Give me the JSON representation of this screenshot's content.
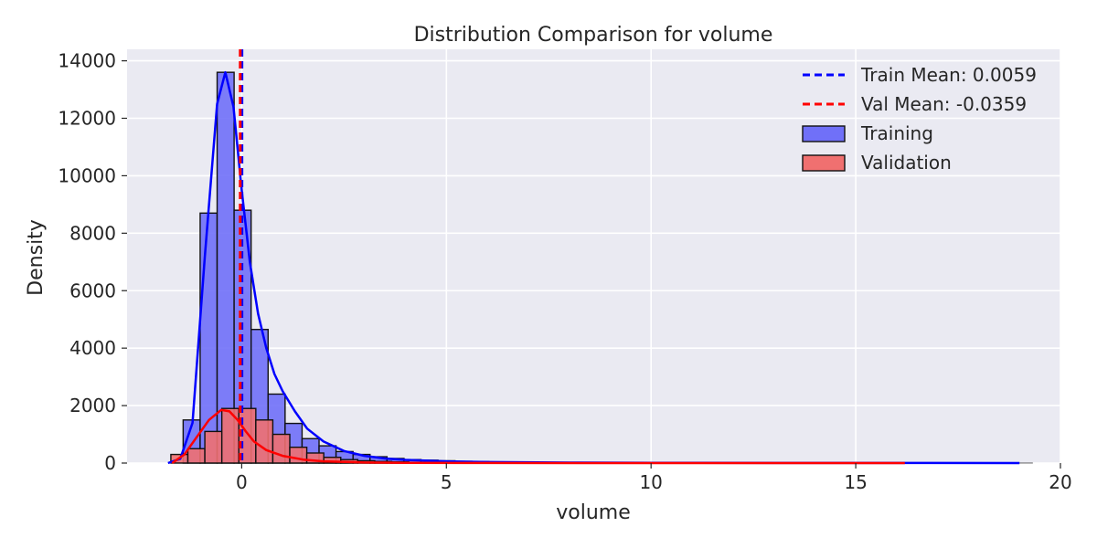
{
  "chart_data": {
    "type": "histogram",
    "title": "Distribution Comparison for volume",
    "xlabel": "volume",
    "ylabel": "Density",
    "xlim": [
      -2.8,
      20
    ],
    "ylim": [
      0,
      14400
    ],
    "xticks": [
      0,
      5,
      10,
      15,
      20
    ],
    "yticks": [
      0,
      2000,
      4000,
      6000,
      8000,
      10000,
      12000,
      14000
    ],
    "grid": true,
    "legend_position": "top-right",
    "bin_width": 0.415,
    "series": [
      {
        "name": "Training",
        "color": "#0000ff",
        "fill": "#7070f8",
        "bins_start": -1.43,
        "counts": [
          1500,
          8700,
          13600,
          8800,
          4650,
          2400,
          1380,
          850,
          600,
          400,
          300,
          220,
          160,
          120,
          100,
          80,
          60,
          50,
          40,
          35,
          30,
          25,
          20,
          15,
          12,
          10,
          8,
          7,
          6,
          5,
          5,
          4,
          4,
          3,
          3,
          3,
          3,
          2,
          2,
          2,
          2,
          2,
          2,
          2,
          2,
          2,
          2,
          2,
          2,
          2
        ],
        "kde": [
          [
            -1.8,
            0
          ],
          [
            -1.5,
            150
          ],
          [
            -1.2,
            1400
          ],
          [
            -0.9,
            7200
          ],
          [
            -0.6,
            12500
          ],
          [
            -0.4,
            13600
          ],
          [
            -0.2,
            12400
          ],
          [
            0.0,
            9500
          ],
          [
            0.2,
            7000
          ],
          [
            0.4,
            5200
          ],
          [
            0.6,
            4000
          ],
          [
            0.8,
            3100
          ],
          [
            1.0,
            2500
          ],
          [
            1.3,
            1800
          ],
          [
            1.6,
            1200
          ],
          [
            2.0,
            750
          ],
          [
            2.5,
            420
          ],
          [
            3.0,
            250
          ],
          [
            3.5,
            160
          ],
          [
            4.0,
            110
          ],
          [
            5.0,
            60
          ],
          [
            6.0,
            35
          ],
          [
            8.0,
            15
          ],
          [
            10.0,
            8
          ],
          [
            13.0,
            4
          ],
          [
            16.0,
            2
          ],
          [
            19.0,
            0
          ]
        ]
      },
      {
        "name": "Validation",
        "color": "#ff0000",
        "fill": "#f07070",
        "bins_start": -1.73,
        "counts": [
          300,
          500,
          1100,
          1900,
          1900,
          1500,
          1000,
          550,
          350,
          200,
          120,
          80,
          55,
          40,
          30,
          20,
          15,
          10,
          8,
          6,
          5,
          4,
          3,
          3,
          2,
          2
        ],
        "kde": [
          [
            -1.7,
            0
          ],
          [
            -1.4,
            300
          ],
          [
            -1.1,
            900
          ],
          [
            -0.8,
            1500
          ],
          [
            -0.5,
            1850
          ],
          [
            -0.3,
            1800
          ],
          [
            -0.1,
            1500
          ],
          [
            0.1,
            1100
          ],
          [
            0.3,
            750
          ],
          [
            0.6,
            450
          ],
          [
            1.0,
            250
          ],
          [
            1.5,
            120
          ],
          [
            2.0,
            60
          ],
          [
            3.0,
            20
          ],
          [
            4.0,
            8
          ],
          [
            6.0,
            3
          ],
          [
            10.0,
            1
          ],
          [
            16.2,
            0
          ]
        ]
      }
    ],
    "mean_lines": [
      {
        "label": "Train Mean: 0.0059",
        "value": 0.0059,
        "color": "#0000ff"
      },
      {
        "label": "Val Mean: -0.0359",
        "value": -0.0359,
        "color": "#ff0000"
      }
    ]
  }
}
